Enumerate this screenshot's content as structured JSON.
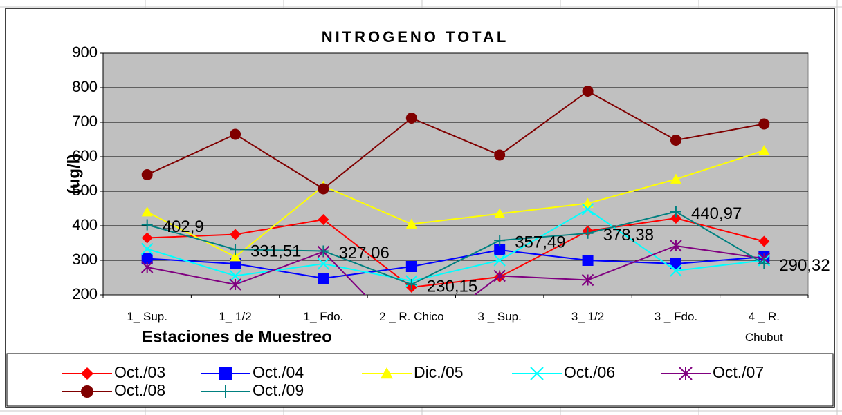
{
  "chart_data": {
    "type": "line",
    "title": "NITROGENO TOTAL",
    "x_label": "Estaciones de Muestreo",
    "y_label": "(ug/l)",
    "categories": [
      "1_ Sup.",
      "1_ 1/2",
      "1_ Fdo.",
      "2 _ R. Chico",
      "3 _ Sup.",
      "3_ 1/2",
      "3 _ Fdo.",
      "4 _ R.\nChubut"
    ],
    "ylim": [
      200,
      900
    ],
    "yticks": [
      200,
      300,
      400,
      500,
      600,
      700,
      800,
      900
    ],
    "grid": true,
    "plot_background": "#c0c0c0",
    "legend": "bottom",
    "series": [
      {
        "name": "Oct./03",
        "color": "#ff0000",
        "marker": "diamond",
        "values": [
          365,
          375,
          418,
          222,
          252,
          385,
          422,
          355
        ]
      },
      {
        "name": "Oct./04",
        "color": "#0000ff",
        "marker": "square",
        "values": [
          305,
          290,
          248,
          282,
          330,
          300,
          290,
          310
        ]
      },
      {
        "name": "Dic./05",
        "color": "#ffff00",
        "marker": "triangle",
        "values": [
          440,
          310,
          515,
          405,
          435,
          465,
          535,
          618
        ]
      },
      {
        "name": "Oct./06",
        "color": "#00ffff",
        "marker": "x",
        "values": [
          333,
          255,
          290,
          240,
          300,
          448,
          270,
          300
        ]
      },
      {
        "name": "Oct./07",
        "color": "#800080",
        "marker": "star",
        "values": [
          280,
          230,
          325,
          60,
          255,
          243,
          342,
          305
        ]
      },
      {
        "name": "Oct./08",
        "color": "#800000",
        "marker": "circle",
        "values": [
          548,
          665,
          507,
          712,
          605,
          790,
          648,
          695
        ]
      },
      {
        "name": "Oct./09",
        "color": "#008080",
        "marker": "plus",
        "values": [
          402.9,
          331.51,
          327.06,
          230.15,
          357.49,
          378.38,
          440.97,
          290.32
        ],
        "value_labels": [
          "402,9",
          "331,51",
          "327,06",
          "230,15",
          "357,49",
          "378,38",
          "440,97",
          "290,32"
        ]
      }
    ]
  }
}
